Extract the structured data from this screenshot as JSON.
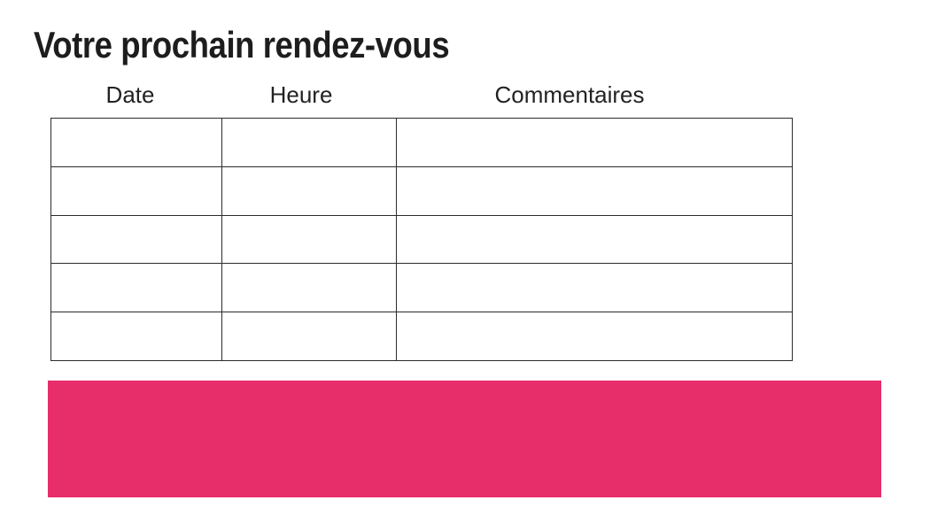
{
  "page": {
    "title": "Votre prochain rendez-vous"
  },
  "table": {
    "headers": [
      "Date",
      "Heure",
      "Commentaires"
    ],
    "row_count": 5,
    "rows": [
      [
        "",
        "",
        ""
      ],
      [
        "",
        "",
        ""
      ],
      [
        "",
        "",
        ""
      ],
      [
        "",
        "",
        ""
      ],
      [
        "",
        "",
        ""
      ]
    ]
  },
  "colors": {
    "accent_pink": "#E82D6B",
    "border_color": "#2B2B2B",
    "text_color": "#1D1D1D"
  }
}
